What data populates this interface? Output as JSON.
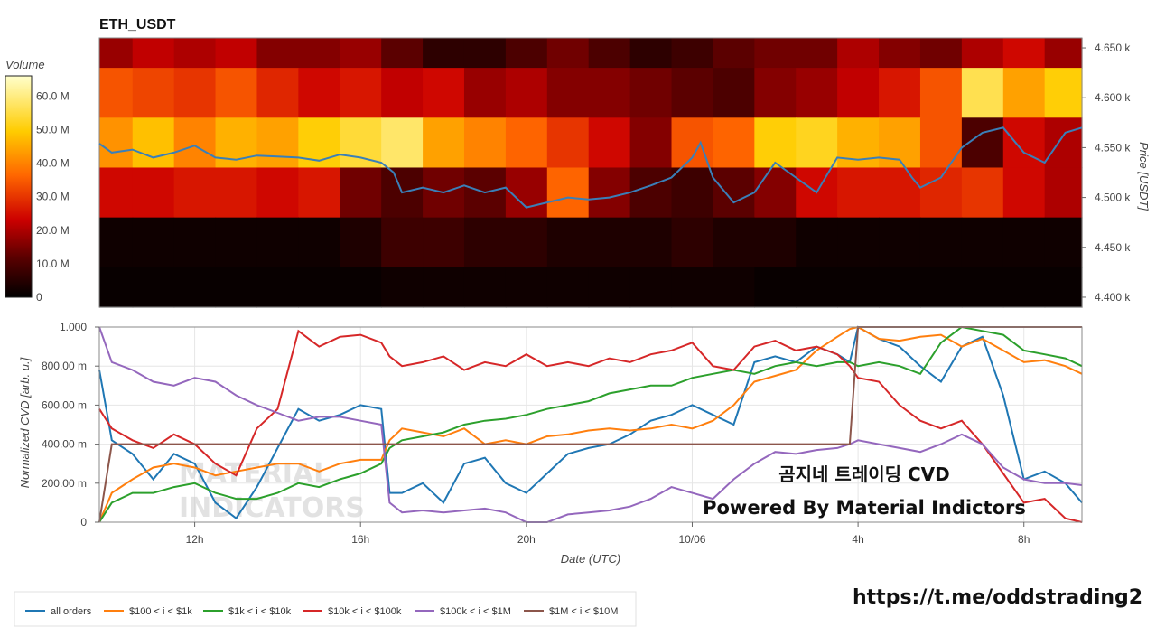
{
  "colors": {
    "price_line": "#3a7fb8",
    "series": [
      "#1f77b4",
      "#ff7f0e",
      "#2ca02c",
      "#d62728",
      "#9467bd",
      "#8c564b"
    ],
    "heat_low": "#000000",
    "heat_high": "#ffffcc"
  },
  "chart_data": [
    {
      "type": "heatmap",
      "title": "ETH_USDT",
      "colorbar_title": "Volume",
      "colorbar_ticks": [
        "0",
        "10.0 M",
        "20.0 M",
        "30.0 M",
        "40.0 M",
        "50.0 M",
        "60.0 M"
      ],
      "colorbar_range": [
        0,
        66
      ],
      "ylabel": "Price [USDT]",
      "yticks": [
        "4.400 k",
        "4.450 k",
        "4.500 k",
        "4.550 k",
        "4.600 k",
        "4.650 k"
      ],
      "ylim": [
        4.39,
        4.66
      ],
      "price_bands": [
        [
          4.63,
          4.66
        ],
        [
          4.58,
          4.63
        ],
        [
          4.53,
          4.58
        ],
        [
          4.48,
          4.53
        ],
        [
          4.43,
          4.48
        ],
        [
          4.39,
          4.43
        ]
      ],
      "xlim": [
        9.7,
        33.4
      ],
      "segments": [
        9.7,
        10.5,
        11.5,
        12.5,
        13.5,
        14.5,
        15.5,
        16.5,
        17.5,
        18.5,
        19.5,
        20.5,
        21.5,
        22.5,
        23.5,
        24.5,
        25.5,
        26.5,
        27.5,
        28.5,
        29.5,
        30.5,
        31.5,
        32.5,
        33.4
      ],
      "volume_grid_M": [
        [
          18,
          22,
          20,
          22,
          16,
          16,
          18,
          12,
          6,
          6,
          10,
          14,
          10,
          6,
          8,
          12,
          14,
          14,
          20,
          16,
          14,
          20,
          24,
          18
        ],
        [
          34,
          32,
          30,
          34,
          28,
          24,
          26,
          22,
          24,
          18,
          20,
          16,
          16,
          14,
          12,
          10,
          16,
          18,
          22,
          26,
          34,
          56,
          44,
          50
        ],
        [
          42,
          48,
          40,
          46,
          44,
          50,
          54,
          58,
          44,
          40,
          36,
          30,
          24,
          16,
          34,
          36,
          50,
          52,
          46,
          44,
          34,
          10,
          24,
          20
        ],
        [
          24,
          24,
          26,
          26,
          24,
          26,
          14,
          10,
          14,
          12,
          18,
          36,
          16,
          10,
          8,
          12,
          16,
          24,
          26,
          26,
          28,
          30,
          24,
          20
        ],
        [
          2,
          2,
          2,
          2,
          2,
          2,
          4,
          8,
          8,
          6,
          6,
          4,
          4,
          4,
          6,
          4,
          4,
          2,
          2,
          2,
          2,
          2,
          2,
          2
        ],
        [
          1,
          1,
          1,
          1,
          1,
          1,
          1,
          2,
          2,
          2,
          2,
          2,
          2,
          2,
          2,
          2,
          1,
          1,
          1,
          1,
          1,
          1,
          1,
          1
        ]
      ],
      "price_series": {
        "x": [
          9.7,
          10.0,
          10.5,
          11.0,
          11.5,
          12.0,
          12.5,
          13.0,
          13.5,
          14.0,
          14.5,
          15.0,
          15.5,
          16.0,
          16.5,
          16.8,
          17.0,
          17.5,
          18.0,
          18.5,
          19.0,
          19.5,
          20.0,
          20.5,
          21.0,
          21.5,
          22.0,
          22.5,
          23.0,
          23.5,
          24.0,
          24.2,
          24.5,
          25.0,
          25.5,
          26.0,
          26.5,
          27.0,
          27.5,
          28.0,
          28.5,
          29.0,
          29.3,
          29.5,
          30.0,
          30.5,
          31.0,
          31.5,
          32.0,
          32.5,
          33.0,
          33.4
        ],
        "y": [
          4.554,
          4.545,
          4.548,
          4.54,
          4.545,
          4.552,
          4.54,
          4.538,
          4.542,
          4.541,
          4.54,
          4.537,
          4.543,
          4.54,
          4.535,
          4.525,
          4.505,
          4.51,
          4.505,
          4.512,
          4.505,
          4.51,
          4.49,
          4.495,
          4.5,
          4.498,
          4.5,
          4.505,
          4.512,
          4.52,
          4.54,
          4.555,
          4.52,
          4.495,
          4.505,
          4.535,
          4.52,
          4.505,
          4.54,
          4.538,
          4.54,
          4.538,
          4.52,
          4.51,
          4.52,
          4.55,
          4.565,
          4.57,
          4.545,
          4.535,
          4.565,
          4.57
        ]
      }
    },
    {
      "type": "line",
      "xlabel": "Date (UTC)",
      "ylabel": "Normalized CVD [arb. u.]",
      "xticks": [
        {
          "x": 12,
          "label": "12h"
        },
        {
          "x": 16,
          "label": "16h"
        },
        {
          "x": 20,
          "label": "20h"
        },
        {
          "x": 24,
          "label": "10/06"
        },
        {
          "x": 28,
          "label": "4h"
        },
        {
          "x": 32,
          "label": "8h"
        }
      ],
      "yticks": [
        "0",
        "200.00 m",
        "400.00 m",
        "600.00 m",
        "800.00 m",
        "1.000"
      ],
      "xlim": [
        9.7,
        33.4
      ],
      "ylim": [
        0,
        1
      ],
      "x": [
        9.7,
        10.0,
        10.5,
        11.0,
        11.5,
        12.0,
        12.5,
        13.0,
        13.5,
        14.0,
        14.5,
        15.0,
        15.5,
        16.0,
        16.5,
        16.7,
        17.0,
        17.5,
        18.0,
        18.5,
        19.0,
        19.5,
        20.0,
        20.5,
        21.0,
        21.5,
        22.0,
        22.5,
        23.0,
        23.5,
        24.0,
        24.5,
        25.0,
        25.5,
        26.0,
        26.5,
        27.0,
        27.5,
        27.8,
        28.0,
        28.5,
        29.0,
        29.5,
        30.0,
        30.5,
        31.0,
        31.5,
        32.0,
        32.5,
        33.0,
        33.4
      ],
      "series": [
        {
          "name": "all orders",
          "values": [
            0.78,
            0.42,
            0.35,
            0.22,
            0.35,
            0.3,
            0.1,
            0.02,
            0.18,
            0.38,
            0.58,
            0.52,
            0.55,
            0.6,
            0.58,
            0.15,
            0.15,
            0.2,
            0.1,
            0.3,
            0.33,
            0.2,
            0.15,
            0.25,
            0.35,
            0.38,
            0.4,
            0.45,
            0.52,
            0.55,
            0.6,
            0.55,
            0.5,
            0.82,
            0.85,
            0.82,
            0.9,
            0.86,
            0.82,
            1.0,
            0.94,
            0.9,
            0.8,
            0.72,
            0.9,
            0.95,
            0.65,
            0.22,
            0.26,
            0.2,
            0.1
          ]
        },
        {
          "name": "$100 < i < $1k",
          "values": [
            0.0,
            0.15,
            0.22,
            0.28,
            0.3,
            0.28,
            0.24,
            0.26,
            0.28,
            0.3,
            0.3,
            0.26,
            0.3,
            0.32,
            0.32,
            0.42,
            0.48,
            0.46,
            0.44,
            0.48,
            0.4,
            0.42,
            0.4,
            0.44,
            0.45,
            0.47,
            0.48,
            0.47,
            0.48,
            0.5,
            0.48,
            0.52,
            0.6,
            0.72,
            0.75,
            0.78,
            0.88,
            0.95,
            0.99,
            1.0,
            0.94,
            0.93,
            0.95,
            0.96,
            0.9,
            0.94,
            0.88,
            0.82,
            0.83,
            0.8,
            0.76
          ]
        },
        {
          "name": "$1k < i < $10k",
          "values": [
            0.0,
            0.1,
            0.15,
            0.15,
            0.18,
            0.2,
            0.15,
            0.12,
            0.12,
            0.15,
            0.2,
            0.18,
            0.22,
            0.25,
            0.3,
            0.38,
            0.42,
            0.44,
            0.46,
            0.5,
            0.52,
            0.53,
            0.55,
            0.58,
            0.6,
            0.62,
            0.66,
            0.68,
            0.7,
            0.7,
            0.74,
            0.76,
            0.78,
            0.76,
            0.8,
            0.82,
            0.8,
            0.82,
            0.82,
            0.8,
            0.82,
            0.8,
            0.76,
            0.92,
            1.0,
            0.98,
            0.96,
            0.88,
            0.86,
            0.84,
            0.8
          ]
        },
        {
          "name": "$10k < i < $100k",
          "values": [
            0.58,
            0.48,
            0.42,
            0.38,
            0.45,
            0.4,
            0.3,
            0.24,
            0.48,
            0.58,
            0.98,
            0.9,
            0.95,
            0.96,
            0.92,
            0.85,
            0.8,
            0.82,
            0.85,
            0.78,
            0.82,
            0.8,
            0.86,
            0.8,
            0.82,
            0.8,
            0.84,
            0.82,
            0.86,
            0.88,
            0.92,
            0.8,
            0.78,
            0.9,
            0.93,
            0.88,
            0.9,
            0.86,
            0.8,
            0.74,
            0.72,
            0.6,
            0.52,
            0.48,
            0.52,
            0.4,
            0.25,
            0.1,
            0.12,
            0.02,
            0.0
          ]
        },
        {
          "name": "$100k < i < $1M",
          "values": [
            1.0,
            0.82,
            0.78,
            0.72,
            0.7,
            0.74,
            0.72,
            0.65,
            0.6,
            0.56,
            0.52,
            0.54,
            0.54,
            0.52,
            0.5,
            0.1,
            0.05,
            0.06,
            0.05,
            0.06,
            0.07,
            0.05,
            0.0,
            0.0,
            0.04,
            0.05,
            0.06,
            0.08,
            0.12,
            0.18,
            0.15,
            0.12,
            0.22,
            0.3,
            0.36,
            0.35,
            0.37,
            0.38,
            0.4,
            0.42,
            0.4,
            0.38,
            0.36,
            0.4,
            0.45,
            0.4,
            0.28,
            0.22,
            0.2,
            0.2,
            0.19
          ]
        },
        {
          "name": "$1M < i < $10M",
          "values": [
            0.0,
            0.4,
            0.4,
            0.4,
            0.4,
            0.4,
            0.4,
            0.4,
            0.4,
            0.4,
            0.4,
            0.4,
            0.4,
            0.4,
            0.4,
            0.4,
            0.4,
            0.4,
            0.4,
            0.4,
            0.4,
            0.4,
            0.4,
            0.4,
            0.4,
            0.4,
            0.4,
            0.4,
            0.4,
            0.4,
            0.4,
            0.4,
            0.4,
            0.4,
            0.4,
            0.4,
            0.4,
            0.4,
            0.4,
            1.0,
            1.0,
            1.0,
            1.0,
            1.0,
            1.0,
            1.0,
            1.0,
            1.0,
            1.0,
            1.0,
            1.0
          ]
        }
      ]
    }
  ],
  "overlay": {
    "line1": "곰지네 트레이딩 CVD",
    "line2": "Powered By Material Indictors",
    "link": "https://t.me/oddstrading2",
    "watermark_line1": "MATERIAL",
    "watermark_line2": "INDICATORS"
  }
}
